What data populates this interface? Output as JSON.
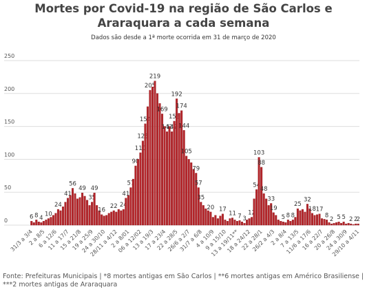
{
  "chart_data": {
    "type": "bar",
    "title": "Mortes por Covid-19 na região de São Carlos e Araraquara a cada semana",
    "subtitle": "Dados são desde a 1ª morte ocorrida em 31 de março de 2020",
    "source": "Fonte: Prefeituras Municipais | *8 mortes antigas em São Carlos | **6 mortes antigas em Américo Brasiliense | ***2 mortes antigas de Araraquara",
    "color": "#b5252a",
    "ylim": [
      0,
      250
    ],
    "yticks": [
      0,
      50,
      100,
      150,
      200,
      250
    ],
    "grid": true,
    "categories": [
      "31/3 a 3/4",
      null,
      null,
      null,
      null,
      "2 a 8/5",
      null,
      null,
      null,
      null,
      "6 a 12/6",
      null,
      null,
      null,
      null,
      "11 a 17/7",
      null,
      null,
      null,
      null,
      "15 a 21/8",
      null,
      null,
      null,
      null,
      "19 a 25/9",
      null,
      null,
      null,
      null,
      "24 a 30/10",
      null,
      null,
      null,
      null,
      "28/11 a 4/12",
      null,
      null,
      null,
      null,
      "2 a 8/01",
      null,
      null,
      null,
      null,
      "06 a 12/02",
      null,
      null,
      null,
      null,
      "13 a 19/3",
      null,
      null,
      null,
      null,
      "17 a 23/4",
      null,
      null,
      null,
      null,
      "22 a 28/5",
      null,
      null,
      null,
      null,
      "26/6 a 2/7",
      null,
      null,
      null,
      null,
      "31/7 a 6/8",
      null,
      null,
      null,
      null,
      "4 a 10/9",
      null,
      null,
      null,
      null,
      "9 a 15/10",
      null,
      null,
      null,
      null,
      "13 a 19/11**",
      null,
      null,
      null,
      null,
      "18 a 24/12",
      null,
      null,
      null,
      null,
      "22 a 28/1",
      null,
      null,
      null,
      null,
      "26/2 a 4/3",
      null,
      null,
      null,
      null,
      "2 a 8/4",
      null,
      null,
      null,
      null,
      "7 a 13/5",
      null,
      null,
      null,
      null,
      "11/6 a 17/6",
      null,
      null,
      null,
      null,
      "16 a 22/7",
      null,
      null,
      null,
      null,
      "20 a 26/8",
      null,
      null,
      null,
      null,
      "24 a 30/9",
      null,
      null,
      null,
      null,
      "29/10 a 4/11"
    ],
    "values": [
      6,
      4,
      8,
      5,
      4,
      6,
      8,
      10,
      12,
      15,
      18,
      24,
      22,
      28,
      35,
      41,
      45,
      56,
      48,
      40,
      42,
      49,
      44,
      38,
      30,
      35,
      49,
      30,
      22,
      16,
      14,
      15,
      18,
      20,
      22,
      20,
      24,
      22,
      24,
      41,
      45,
      57,
      70,
      90,
      100,
      110,
      128,
      154,
      180,
      205,
      210,
      219,
      200,
      185,
      169,
      150,
      142,
      150,
      142,
      158,
      192,
      170,
      174,
      144,
      105,
      100,
      95,
      85,
      79,
      57,
      35,
      30,
      25,
      22,
      20,
      12,
      15,
      10,
      14,
      17,
      8,
      6,
      10,
      11,
      8,
      6,
      7,
      5,
      3,
      8,
      10,
      12,
      40,
      54,
      103,
      88,
      48,
      40,
      30,
      33,
      19,
      15,
      8,
      6,
      5,
      4,
      8,
      6,
      8,
      12,
      25,
      22,
      24,
      20,
      32,
      25,
      18,
      15,
      16,
      17,
      10,
      9,
      8,
      4,
      2,
      3,
      4,
      5,
      3,
      5,
      2,
      3,
      2,
      1,
      2,
      2
    ],
    "value_labels": [
      "6",
      null,
      "8",
      null,
      "4",
      null,
      null,
      "10",
      null,
      null,
      null,
      "24",
      null,
      null,
      null,
      "41",
      null,
      "56",
      null,
      null,
      null,
      "49",
      null,
      null,
      null,
      "35",
      "49",
      null,
      null,
      "16",
      null,
      null,
      null,
      null,
      "22",
      null,
      null,
      null,
      "24",
      "41",
      null,
      "57",
      null,
      "90",
      null,
      "110",
      "128",
      "154",
      null,
      "205",
      null,
      "219",
      null,
      null,
      "169",
      null,
      "142",
      null,
      "142",
      "158",
      "192",
      null,
      "174",
      "144",
      "105",
      null,
      null,
      null,
      "79",
      "57",
      "35",
      null,
      null,
      null,
      "20",
      null,
      null,
      null,
      null,
      "17",
      null,
      null,
      null,
      "11",
      null,
      null,
      "7",
      null,
      "3",
      null,
      null,
      "12",
      null,
      "54",
      "103",
      "88",
      "48",
      null,
      null,
      "33",
      "19",
      null,
      null,
      null,
      "5",
      null,
      "8",
      null,
      "8",
      null,
      "25",
      null,
      null,
      null,
      "32",
      null,
      "18",
      null,
      null,
      "17",
      null,
      null,
      "8",
      null,
      "2",
      null,
      null,
      "5",
      null,
      "5",
      null,
      null,
      "2",
      null,
      "2",
      "2"
    ]
  }
}
